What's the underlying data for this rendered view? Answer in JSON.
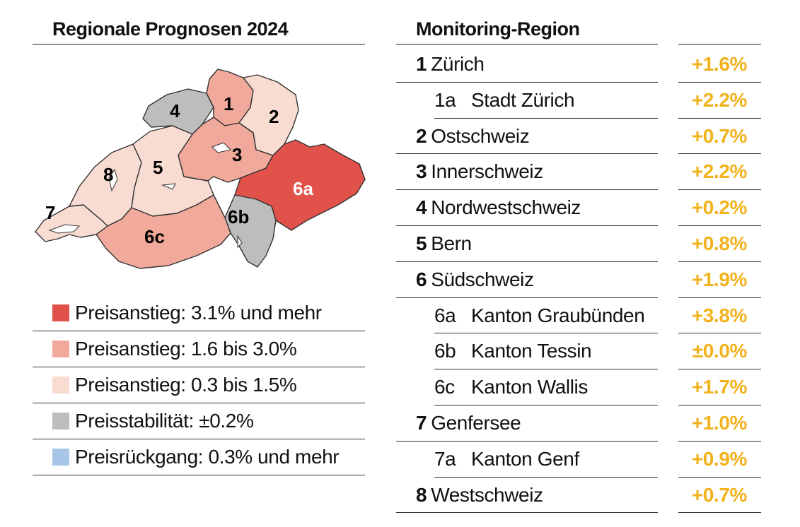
{
  "left_title": "Regionale Prognosen 2024",
  "right_title": "Monitoring-Region",
  "map": {
    "labels": {
      "r1": "1",
      "r2": "2",
      "r3": "3",
      "r4": "4",
      "r5": "5",
      "r6a": "6a",
      "r6b": "6b",
      "r6c": "6c",
      "r7": "7",
      "r8": "8"
    }
  },
  "colors": {
    "strong_increase": "#e0524a",
    "moderate_increase": "#f0a99a",
    "slight_increase": "#f8dcd2",
    "stable": "#bdbdbd",
    "decrease": "#a7c6e8",
    "value_text": "#f2b21c"
  },
  "legend": [
    {
      "label": "Preisanstieg: 3.1% und mehr",
      "color": "#e0524a"
    },
    {
      "label": "Preisanstieg: 1.6 bis 3.0%",
      "color": "#f0a99a"
    },
    {
      "label": "Preisanstieg: 0.3 bis 1.5%",
      "color": "#f8dcd2"
    },
    {
      "label": "Preisstabilität: ±0.2%",
      "color": "#bdbdbd"
    },
    {
      "label": "Preisrückgang: 0.3% und mehr",
      "color": "#a7c6e8"
    }
  ],
  "regions": [
    {
      "num": "1",
      "name": "Zürich",
      "value": "+1.6%",
      "sub": false
    },
    {
      "num": "1a",
      "name": "Stadt Zürich",
      "value": "+2.2%",
      "sub": true
    },
    {
      "num": "2",
      "name": "Ostschweiz",
      "value": "+0.7%",
      "sub": false
    },
    {
      "num": "3",
      "name": "Innerschweiz",
      "value": "+2.2%",
      "sub": false
    },
    {
      "num": "4",
      "name": "Nordwestschweiz",
      "value": "+0.2%",
      "sub": false
    },
    {
      "num": "5",
      "name": "Bern",
      "value": "+0.8%",
      "sub": false
    },
    {
      "num": "6",
      "name": "Südschweiz",
      "value": "+1.9%",
      "sub": false
    },
    {
      "num": "6a",
      "name": "Kanton Graubünden",
      "value": "+3.8%",
      "sub": true
    },
    {
      "num": "6b",
      "name": "Kanton Tessin",
      "value": "±0.0%",
      "sub": true
    },
    {
      "num": "6c",
      "name": "Kanton Wallis",
      "value": "+1.7%",
      "sub": true
    },
    {
      "num": "7",
      "name": "Genfersee",
      "value": "+1.0%",
      "sub": false
    },
    {
      "num": "7a",
      "name": "Kanton Genf",
      "value": "+0.9%",
      "sub": true
    },
    {
      "num": "8",
      "name": "Westschweiz",
      "value": "+0.7%",
      "sub": false
    }
  ]
}
